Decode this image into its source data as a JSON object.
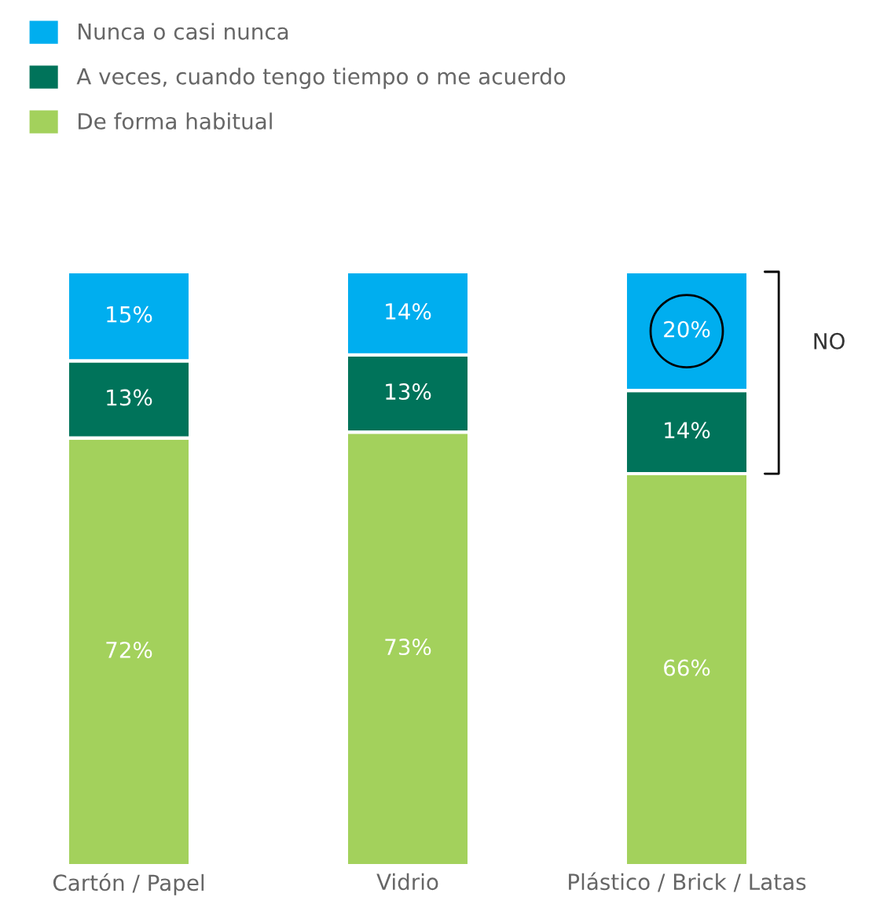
{
  "chart_data": {
    "type": "bar",
    "stacked": true,
    "legend": "top left",
    "categories": [
      "Cartón / Papel",
      "Vidrio",
      "Plástico / Brick / Latas"
    ],
    "series": [
      {
        "name": "De forma habitual",
        "color": "#a3d15c",
        "values": [
          72,
          73,
          66
        ],
        "value_labels": [
          "72%",
          "73%",
          "66%"
        ]
      },
      {
        "name": "A veces, cuando tengo tiempo o me acuerdo",
        "color": "#00735a",
        "values": [
          13,
          13,
          14
        ],
        "value_labels": [
          "13%",
          "13%",
          "14%"
        ]
      },
      {
        "name": "Nunca o casi nunca",
        "color": "#00aeef",
        "values": [
          15,
          14,
          20
        ],
        "value_labels": [
          "15%",
          "14%",
          "20%"
        ]
      }
    ],
    "tick_labels": "x",
    "annotations": [
      "NO"
    ]
  }
}
